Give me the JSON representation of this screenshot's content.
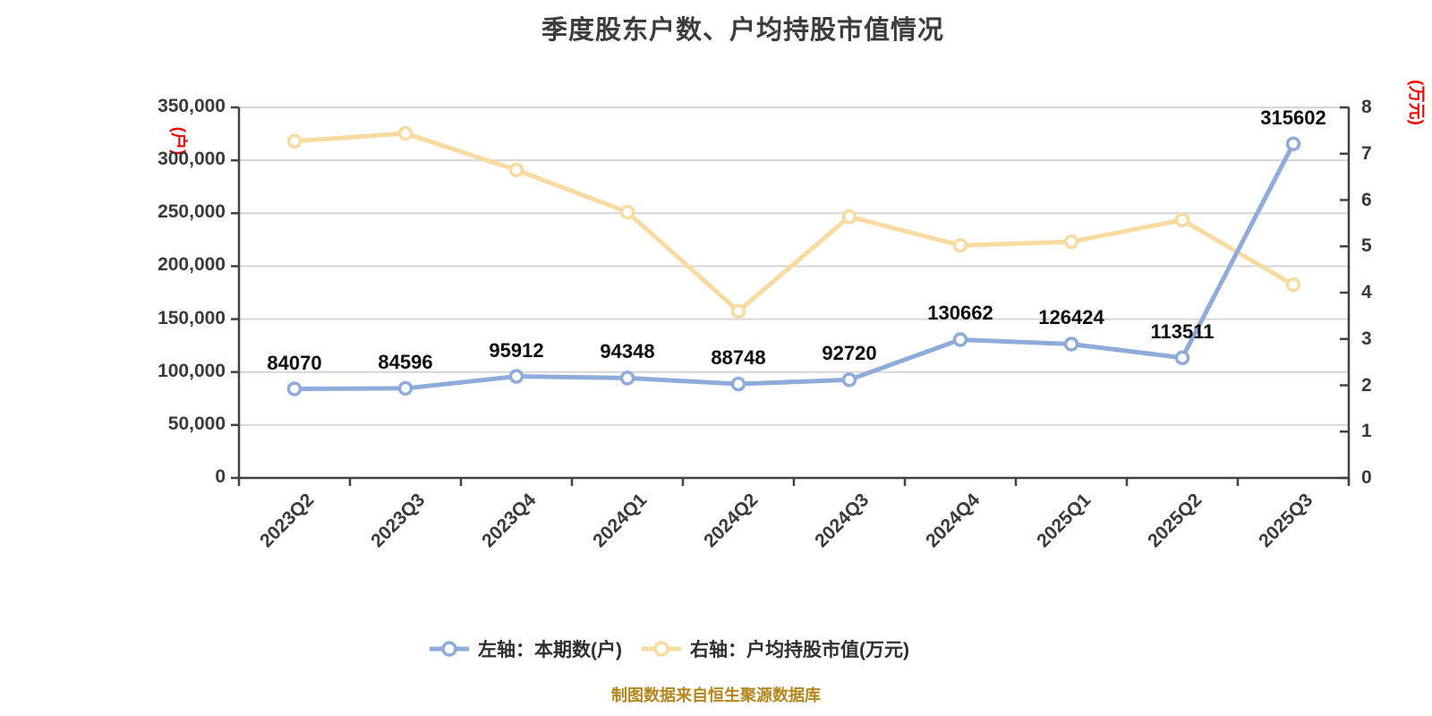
{
  "title": "季度股东户数、户均持股市值情况",
  "caption": "制图数据来自恒生聚源数据库",
  "left_axis": {
    "unit_label": "(户)",
    "ticks": [
      {
        "v": 0,
        "label": "0"
      },
      {
        "v": 50000,
        "label": "50,000"
      },
      {
        "v": 100000,
        "label": "100,000"
      },
      {
        "v": 150000,
        "label": "150,000"
      },
      {
        "v": 200000,
        "label": "200,000"
      },
      {
        "v": 250000,
        "label": "250,000"
      },
      {
        "v": 300000,
        "label": "300,000"
      },
      {
        "v": 350000,
        "label": "350,000"
      }
    ]
  },
  "right_axis": {
    "unit_label": "(万元)",
    "ticks": [
      {
        "v": 0,
        "label": "0"
      },
      {
        "v": 1,
        "label": "1"
      },
      {
        "v": 2,
        "label": "2"
      },
      {
        "v": 3,
        "label": "3"
      },
      {
        "v": 4,
        "label": "4"
      },
      {
        "v": 5,
        "label": "5"
      },
      {
        "v": 6,
        "label": "6"
      },
      {
        "v": 7,
        "label": "7"
      },
      {
        "v": 8,
        "label": "8"
      }
    ]
  },
  "legend": [
    {
      "label": "左轴：本期数(户)",
      "color": "#8fabdc"
    },
    {
      "label": "右轴：户均持股市值(万元)",
      "color": "#f7dba0"
    }
  ],
  "chart_data": {
    "type": "line",
    "categories": [
      "2023Q2",
      "2023Q3",
      "2023Q4",
      "2024Q1",
      "2024Q2",
      "2024Q3",
      "2024Q4",
      "2025Q1",
      "2025Q2",
      "2025Q3"
    ],
    "series": [
      {
        "name": "左轴：本期数(户)",
        "axis": "left",
        "color": "#8fabdc",
        "values": [
          84070,
          84596,
          95912,
          94348,
          88748,
          92720,
          130662,
          126424,
          113511,
          315602
        ],
        "show_labels": true
      },
      {
        "name": "右轴：户均持股市值(万元)",
        "axis": "right",
        "color": "#f7dba0",
        "values": [
          7.27,
          7.44,
          6.65,
          5.74,
          3.6,
          5.64,
          5.02,
          5.1,
          5.57,
          4.17
        ],
        "show_labels": false
      }
    ],
    "left_ylim": [
      0,
      350000
    ],
    "right_ylim": [
      0,
      8
    ],
    "grid": true,
    "legend_position": "bottom",
    "title": "季度股东户数、户均持股市值情况",
    "xlabel": "",
    "ylabel_left": "(户)",
    "ylabel_right": "(万元)"
  },
  "colors": {
    "background": "#ffffff",
    "grid": "#d6d6d6",
    "axis": "#424242",
    "tick_text": "#3a3a3a",
    "data_label": "#0d0d0d",
    "unit_red": "#fe0000",
    "caption_gold": "#b5861b",
    "marker_fill": "#ffffff"
  }
}
